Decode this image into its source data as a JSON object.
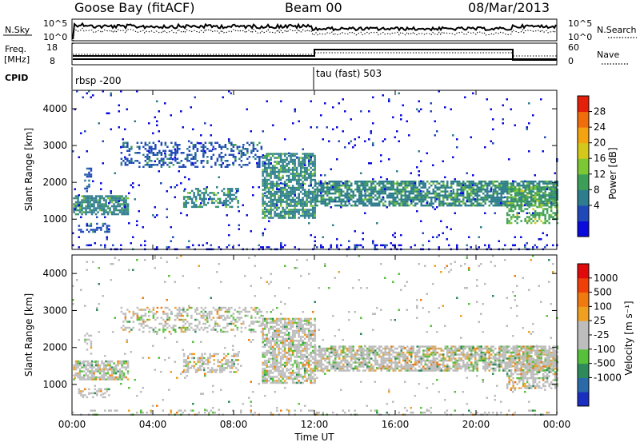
{
  "header": {
    "station": "Goose Bay (fitACF)",
    "beam": "Beam 00",
    "date": "08/Mar/2013"
  },
  "noise_panel": {
    "left_label": "N.Sky",
    "right_label": "N.Search",
    "left_ticks": [
      "10^5",
      "10^0"
    ],
    "right_ticks": [
      "10^5",
      "10^0"
    ]
  },
  "freq_panel": {
    "left_label_1": "Freq.",
    "left_label_2": "[MHz]",
    "right_label": "Nave",
    "left_ticks": [
      "18",
      "8"
    ],
    "right_ticks": [
      "60",
      "0"
    ]
  },
  "cpid_panel": {
    "label": "CPID",
    "modes": [
      "rbsp -200",
      "tau (fast) 503"
    ]
  },
  "chart_data": [
    {
      "type": "heatmap",
      "name": "power",
      "ylabel": "Slant Range [km]",
      "y_ticks": [
        "4000",
        "3000",
        "2000",
        "1000"
      ],
      "x_ticks": [
        "00:00",
        "04:00",
        "08:00",
        "12:00",
        "16:00",
        "20:00",
        "00:00"
      ],
      "xlim_hours": [
        0,
        24
      ],
      "ylim_km": [
        180,
        4500
      ],
      "colorbar": {
        "label": "Power [dB]",
        "ticks": [
          "28",
          "24",
          "20",
          "16",
          "12",
          "8",
          "4"
        ],
        "colors": [
          "#0a0adc",
          "#1f49b8",
          "#2e7d8e",
          "#3d9e57",
          "#7cc734",
          "#d4c81a",
          "#f4a410",
          "#f06d0c",
          "#e4200a"
        ]
      }
    },
    {
      "type": "heatmap",
      "name": "velocity",
      "ylabel": "Slant Range [km]",
      "y_ticks": [
        "4000",
        "3000",
        "2000",
        "1000"
      ],
      "x_ticks": [
        "00:00",
        "04:00",
        "08:00",
        "12:00",
        "16:00",
        "20:00",
        "00:00"
      ],
      "xlabel": "Time UT",
      "xlim_hours": [
        0,
        24
      ],
      "ylim_km": [
        180,
        4500
      ],
      "colorbar": {
        "label": "Velocity [m s⁻¹]",
        "ticks": [
          "1000",
          "500",
          "100",
          "25",
          "-25",
          "-100",
          "-500",
          "-1000"
        ],
        "colors": [
          "#1a2fc0",
          "#2a6aa8",
          "#2e8a5a",
          "#57c03a",
          "#bdbdbd",
          "#bdbdbd",
          "#f0a020",
          "#f07a10",
          "#f0400a",
          "#e00a0a"
        ]
      }
    }
  ],
  "colors": {
    "frame": "#000000",
    "ground": "#dcb070",
    "gray": "#bdbdbd"
  }
}
